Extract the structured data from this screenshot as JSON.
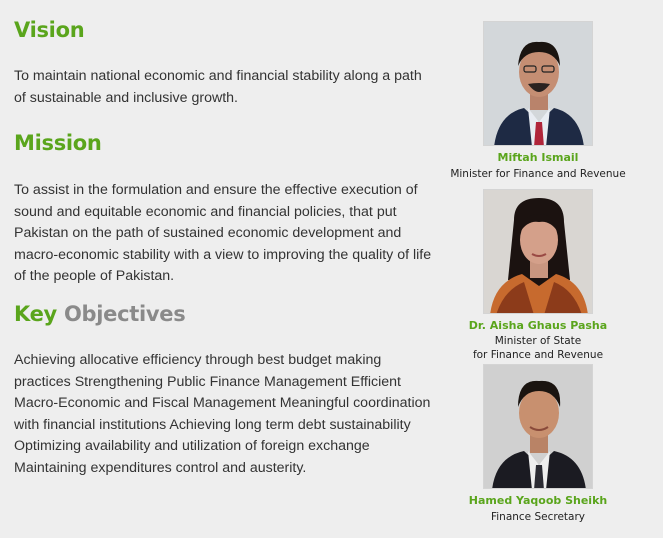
{
  "vision": {
    "heading": "Vision",
    "text": "To maintain national economic and financial stability along a path of sustainable and inclusive growth."
  },
  "mission": {
    "heading": "Mission",
    "text": "To assist in the formulation and ensure the effective execution of sound and equitable economic and financial policies, that put Pakistan on the path of sustained economic development and macro-economic stability with a view to improving the quality of life of the people of Pakistan."
  },
  "objectives": {
    "heading_first": "Key",
    "heading_second": "Objectives",
    "text": "Achieving allocative efficiency through best budget making practices Strengthening Public Finance Management Efficient Macro-Economic and Fiscal Management Meaningful coordination with financial institutions Achieving long term debt sustainability Optimizing availability and utilization of foreign exchange Maintaining expenditures control and austerity."
  },
  "people": [
    {
      "name": "Miftah Ismail",
      "title_line1": "Minister for Finance and Revenue",
      "title_line2": ""
    },
    {
      "name": "Dr. Aisha Ghaus Pasha",
      "title_line1": "Minister of State",
      "title_line2": "for Finance and Revenue"
    },
    {
      "name": "Hamed Yaqoob Sheikh",
      "title_line1": "Finance Secretary",
      "title_line2": ""
    }
  ],
  "colors": {
    "accent_green": "#5aa51c",
    "muted_grey": "#8a8a8a",
    "background": "#eeeeee"
  }
}
